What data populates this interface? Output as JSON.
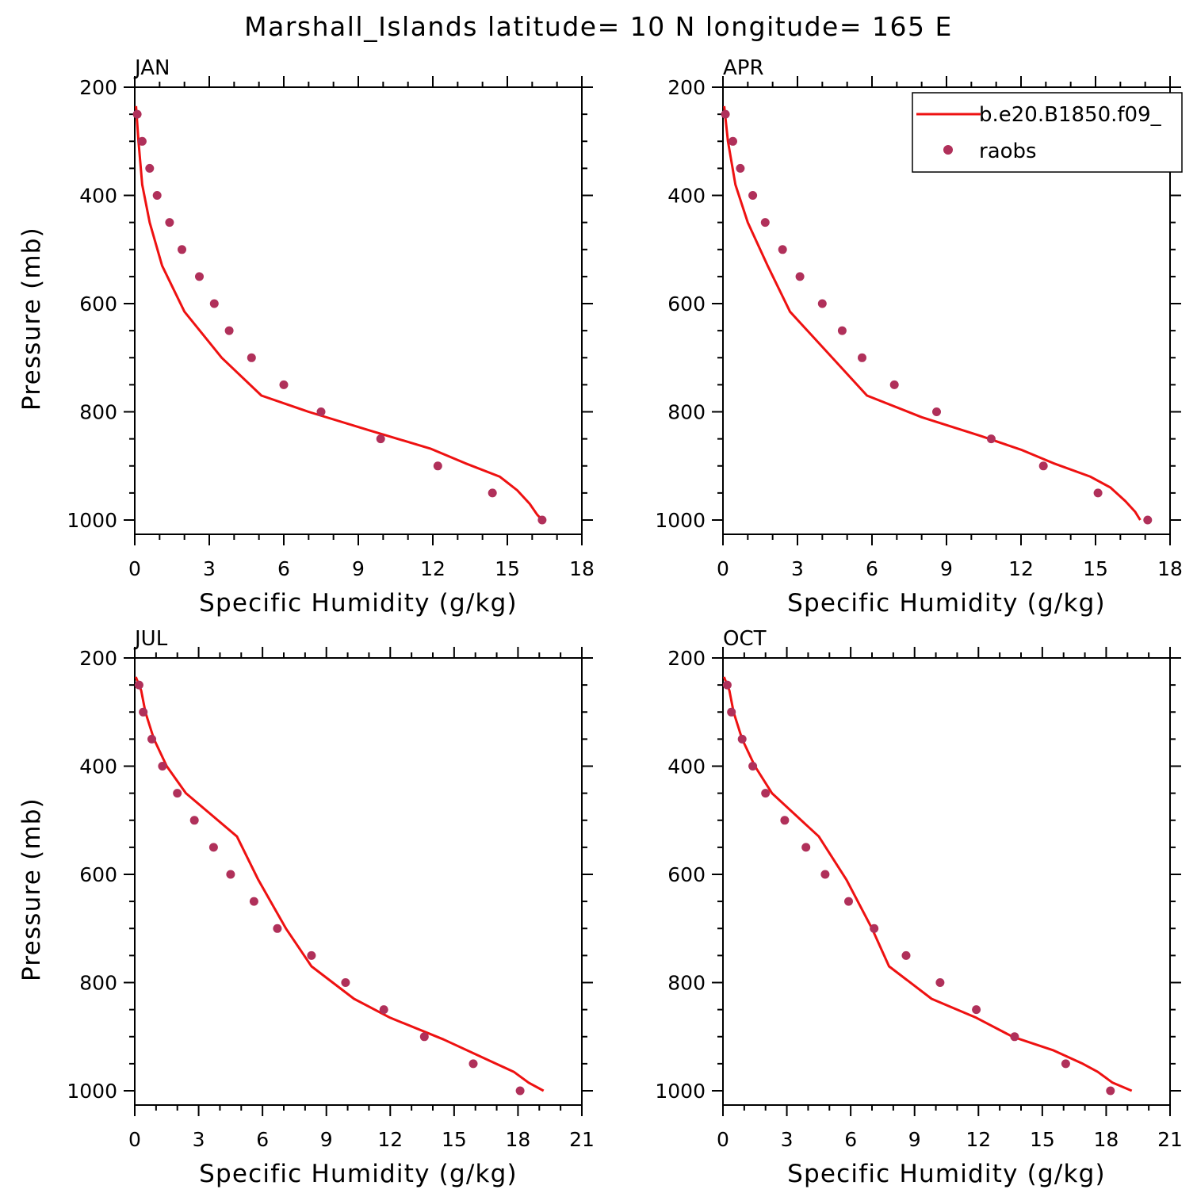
{
  "title": "Marshall_Islands  latitude= 10 N longitude= 165 E",
  "colors": {
    "model": "#ee1111",
    "obs": "#b0305a",
    "axis": "#000000"
  },
  "legend": {
    "model_label": "b.e20.B1850.f09_",
    "obs_label": "raobs"
  },
  "chart_data": [
    {
      "type": "line",
      "title": "JAN",
      "xlabel": "Specific Humidity (g/kg)",
      "ylabel": "Pressure (mb)",
      "xlim": [
        0,
        18
      ],
      "ylim": [
        1000,
        200
      ],
      "xticks": [
        "0",
        "3",
        "6",
        "9",
        "12",
        "15",
        "18"
      ],
      "yticks": [
        "200",
        "400",
        "600",
        "800",
        "1000"
      ],
      "series": [
        {
          "name": "b.e20.B1850.f09_",
          "style": "line",
          "points": [
            [
              0.05,
              235
            ],
            [
              0.15,
              300
            ],
            [
              0.3,
              380
            ],
            [
              0.6,
              450
            ],
            [
              1.1,
              530
            ],
            [
              2.0,
              615
            ],
            [
              3.5,
              700
            ],
            [
              5.1,
              770
            ],
            [
              7.0,
              800
            ],
            [
              9.5,
              835
            ],
            [
              11.9,
              868
            ],
            [
              13.3,
              895
            ],
            [
              14.7,
              920
            ],
            [
              15.4,
              945
            ],
            [
              15.9,
              970
            ],
            [
              16.2,
              990
            ],
            [
              16.4,
              1000
            ]
          ]
        },
        {
          "name": "raobs",
          "style": "markers",
          "points": [
            [
              0.1,
              250
            ],
            [
              0.3,
              300
            ],
            [
              0.6,
              350
            ],
            [
              0.9,
              400
            ],
            [
              1.4,
              450
            ],
            [
              1.9,
              500
            ],
            [
              2.6,
              550
            ],
            [
              3.2,
              600
            ],
            [
              3.8,
              650
            ],
            [
              4.7,
              700
            ],
            [
              6.0,
              750
            ],
            [
              7.5,
              800
            ],
            [
              9.9,
              850
            ],
            [
              12.2,
              900
            ],
            [
              14.4,
              950
            ],
            [
              16.4,
              1000
            ]
          ]
        }
      ]
    },
    {
      "type": "line",
      "title": "APR",
      "xlabel": "Specific Humidity (g/kg)",
      "ylabel": "",
      "xlim": [
        0,
        18
      ],
      "ylim": [
        1000,
        200
      ],
      "xticks": [
        "0",
        "3",
        "6",
        "9",
        "12",
        "15",
        "18"
      ],
      "yticks": [
        "200",
        "400",
        "600",
        "800",
        "1000"
      ],
      "series": [
        {
          "name": "b.e20.B1850.f09_",
          "style": "line",
          "points": [
            [
              0.05,
              235
            ],
            [
              0.2,
              300
            ],
            [
              0.5,
              380
            ],
            [
              1.0,
              450
            ],
            [
              1.8,
              530
            ],
            [
              2.7,
              615
            ],
            [
              4.2,
              690
            ],
            [
              5.8,
              770
            ],
            [
              8.0,
              810
            ],
            [
              10.4,
              845
            ],
            [
              12.0,
              870
            ],
            [
              13.3,
              895
            ],
            [
              14.8,
              920
            ],
            [
              15.6,
              940
            ],
            [
              16.2,
              965
            ],
            [
              16.6,
              985
            ],
            [
              16.8,
              1000
            ]
          ]
        },
        {
          "name": "raobs",
          "style": "markers",
          "points": [
            [
              0.1,
              250
            ],
            [
              0.4,
              300
            ],
            [
              0.7,
              350
            ],
            [
              1.2,
              400
            ],
            [
              1.7,
              450
            ],
            [
              2.4,
              500
            ],
            [
              3.1,
              550
            ],
            [
              4.0,
              600
            ],
            [
              4.8,
              650
            ],
            [
              5.6,
              700
            ],
            [
              6.9,
              750
            ],
            [
              8.6,
              800
            ],
            [
              10.8,
              850
            ],
            [
              12.9,
              900
            ],
            [
              15.1,
              950
            ],
            [
              17.1,
              1000
            ]
          ]
        }
      ]
    },
    {
      "type": "line",
      "title": "JUL",
      "xlabel": "Specific Humidity (g/kg)",
      "ylabel": "Pressure (mb)",
      "xlim": [
        0,
        21
      ],
      "ylim": [
        1000,
        200
      ],
      "xticks": [
        "0",
        "3",
        "6",
        "9",
        "12",
        "15",
        "18",
        "21"
      ],
      "yticks": [
        "200",
        "400",
        "600",
        "800",
        "1000"
      ],
      "series": [
        {
          "name": "b.e20.B1850.f09_",
          "style": "line",
          "points": [
            [
              0.05,
              235
            ],
            [
              0.3,
              260
            ],
            [
              0.5,
              300
            ],
            [
              0.9,
              350
            ],
            [
              1.5,
              400
            ],
            [
              2.4,
              450
            ],
            [
              3.6,
              490
            ],
            [
              4.8,
              530
            ],
            [
              5.8,
              610
            ],
            [
              7.1,
              700
            ],
            [
              8.3,
              770
            ],
            [
              10.3,
              830
            ],
            [
              12.0,
              865
            ],
            [
              14.5,
              905
            ],
            [
              16.7,
              945
            ],
            [
              17.8,
              965
            ],
            [
              18.5,
              985
            ],
            [
              19.2,
              1000
            ]
          ]
        },
        {
          "name": "raobs",
          "style": "markers",
          "points": [
            [
              0.2,
              250
            ],
            [
              0.4,
              300
            ],
            [
              0.8,
              350
            ],
            [
              1.3,
              400
            ],
            [
              2.0,
              450
            ],
            [
              2.8,
              500
            ],
            [
              3.7,
              550
            ],
            [
              4.5,
              600
            ],
            [
              5.6,
              650
            ],
            [
              6.7,
              700
            ],
            [
              8.3,
              750
            ],
            [
              9.9,
              800
            ],
            [
              11.7,
              850
            ],
            [
              13.6,
              900
            ],
            [
              15.9,
              950
            ],
            [
              18.1,
              1000
            ]
          ]
        }
      ]
    },
    {
      "type": "line",
      "title": "OCT",
      "xlabel": "Specific Humidity (g/kg)",
      "ylabel": "",
      "xlim": [
        0,
        21
      ],
      "ylim": [
        1000,
        200
      ],
      "xticks": [
        "0",
        "3",
        "6",
        "9",
        "12",
        "15",
        "18",
        "21"
      ],
      "yticks": [
        "200",
        "400",
        "600",
        "800",
        "1000"
      ],
      "series": [
        {
          "name": "b.e20.B1850.f09_",
          "style": "line",
          "points": [
            [
              0.05,
              235
            ],
            [
              0.3,
              260
            ],
            [
              0.5,
              300
            ],
            [
              0.9,
              350
            ],
            [
              1.5,
              400
            ],
            [
              2.3,
              450
            ],
            [
              3.4,
              490
            ],
            [
              4.5,
              530
            ],
            [
              5.8,
              610
            ],
            [
              7.0,
              700
            ],
            [
              7.8,
              770
            ],
            [
              9.8,
              830
            ],
            [
              11.9,
              865
            ],
            [
              13.6,
              900
            ],
            [
              15.5,
              925
            ],
            [
              16.9,
              950
            ],
            [
              17.6,
              965
            ],
            [
              18.3,
              985
            ],
            [
              19.2,
              1000
            ]
          ]
        },
        {
          "name": "raobs",
          "style": "markers",
          "points": [
            [
              0.2,
              250
            ],
            [
              0.4,
              300
            ],
            [
              0.9,
              350
            ],
            [
              1.4,
              400
            ],
            [
              2.0,
              450
            ],
            [
              2.9,
              500
            ],
            [
              3.9,
              550
            ],
            [
              4.8,
              600
            ],
            [
              5.9,
              650
            ],
            [
              7.1,
              700
            ],
            [
              8.6,
              750
            ],
            [
              10.2,
              800
            ],
            [
              11.9,
              850
            ],
            [
              13.7,
              900
            ],
            [
              16.1,
              950
            ],
            [
              18.2,
              1000
            ]
          ]
        }
      ]
    }
  ]
}
